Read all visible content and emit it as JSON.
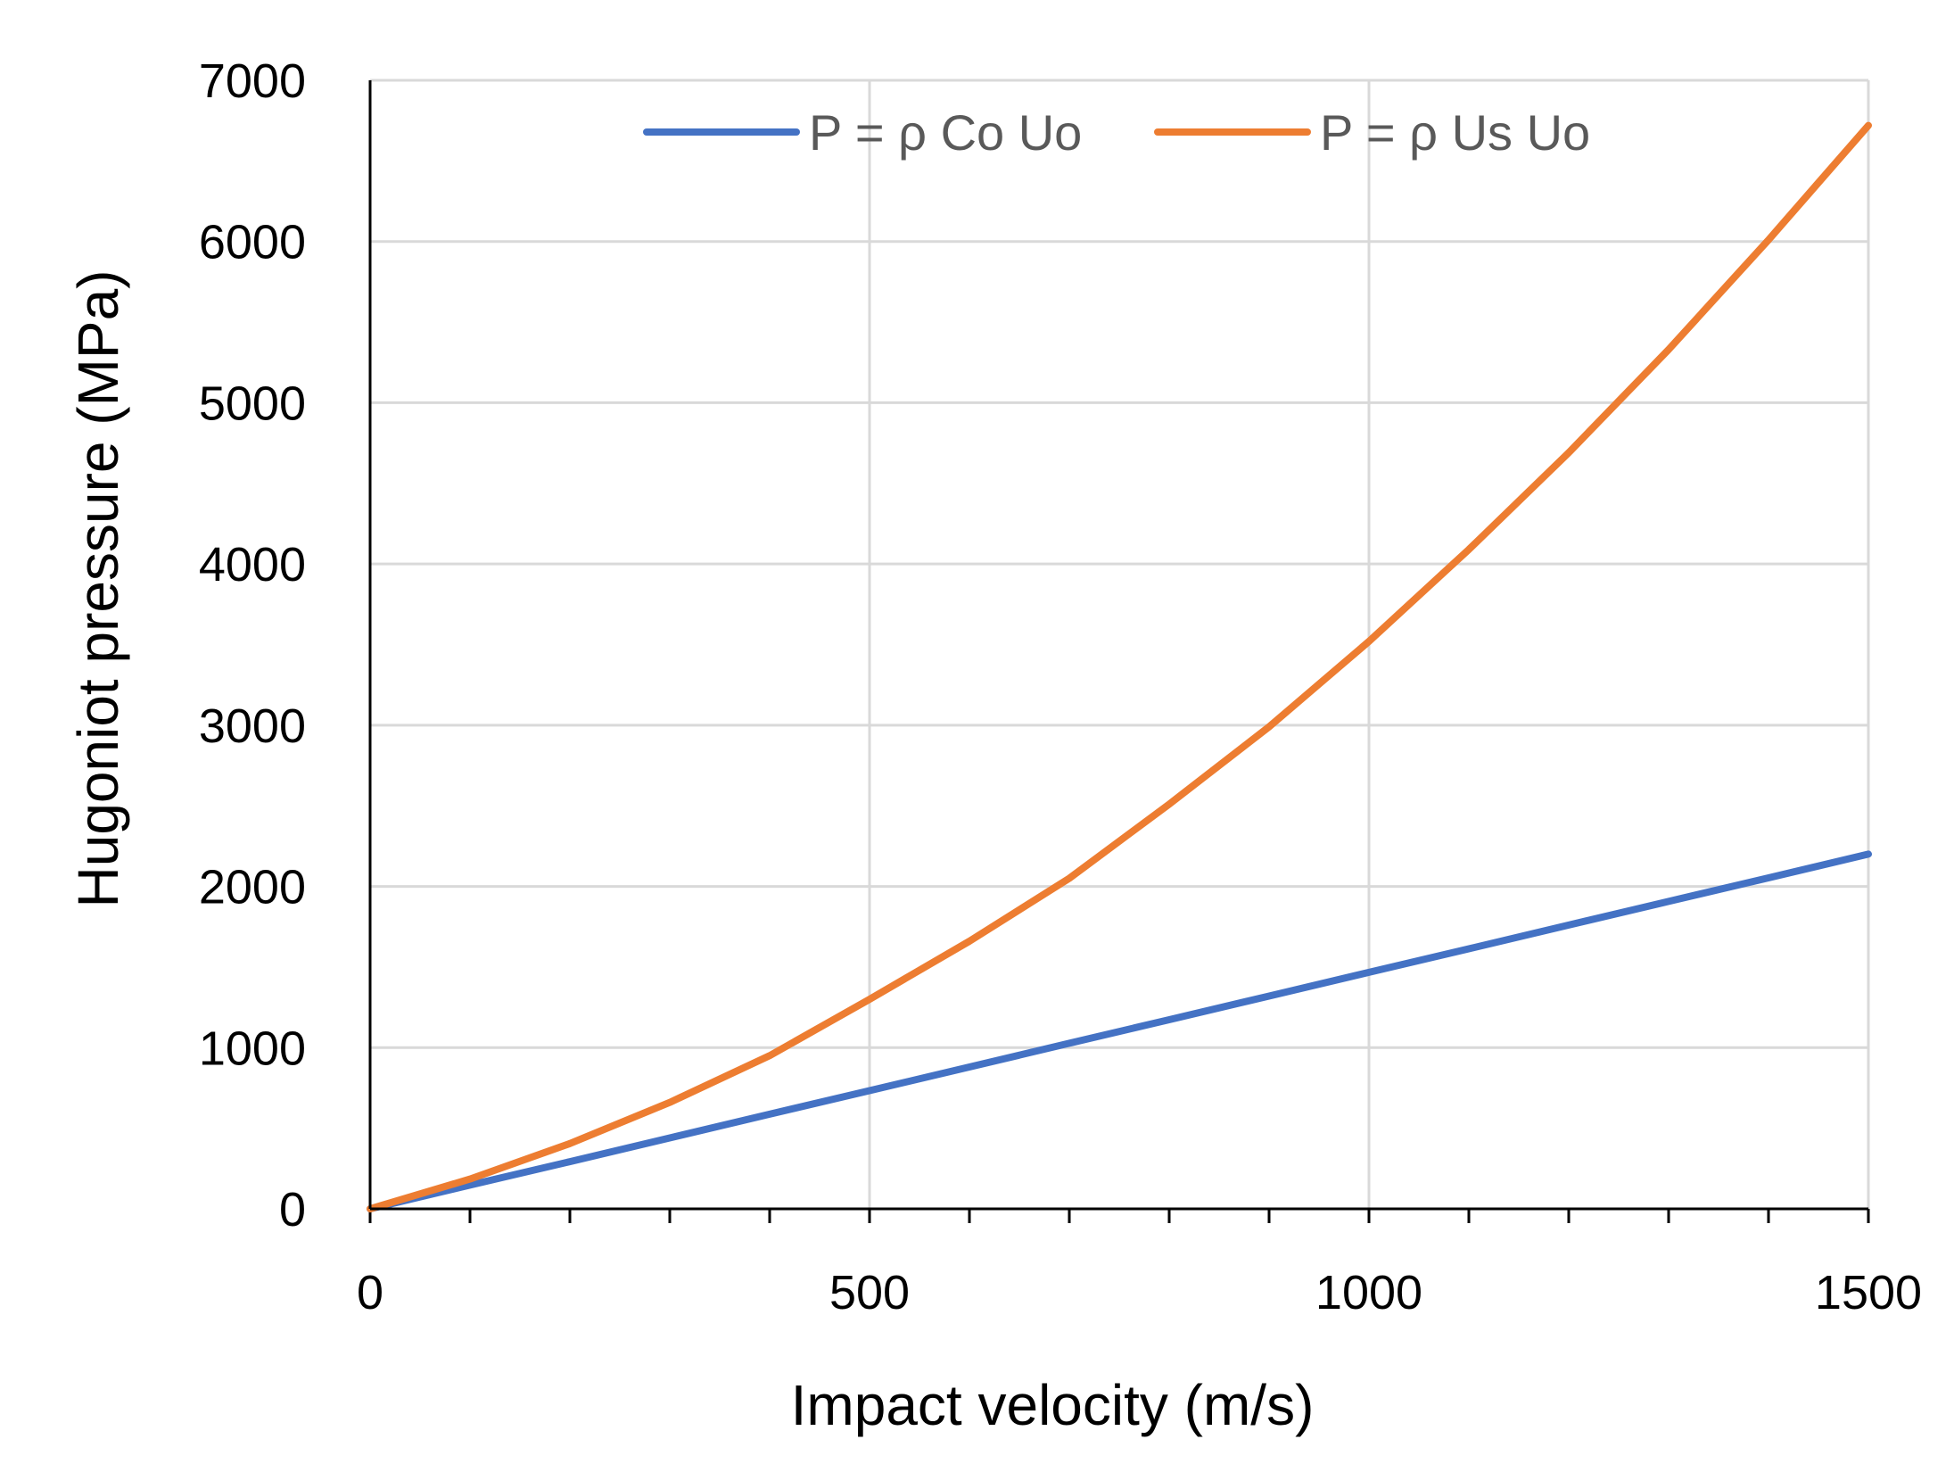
{
  "chart_data": {
    "type": "line",
    "xlabel": "Impact velocity (m/s)",
    "ylabel": "Hugoniot pressure (MPa)",
    "xlim": [
      0,
      1500
    ],
    "ylim": [
      0,
      7000
    ],
    "x_ticks": [
      0,
      500,
      1000,
      1500
    ],
    "y_ticks": [
      0,
      1000,
      2000,
      3000,
      4000,
      5000,
      6000,
      7000
    ],
    "x_minor_step": 100,
    "grid": true,
    "legend_position": "top",
    "series": [
      {
        "name": "P = ρ Co Uo",
        "color": "#4472C4",
        "x": [
          0,
          100,
          200,
          300,
          400,
          500,
          600,
          700,
          800,
          900,
          1000,
          1100,
          1200,
          1300,
          1400,
          1500
        ],
        "y": [
          0,
          147,
          293,
          440,
          587,
          733,
          880,
          1027,
          1173,
          1320,
          1467,
          1613,
          1760,
          1907,
          2053,
          2200
        ]
      },
      {
        "name": "P = ρ Us Uo",
        "color": "#ED7D31",
        "x": [
          0,
          100,
          200,
          300,
          400,
          500,
          600,
          700,
          800,
          900,
          1000,
          1100,
          1200,
          1300,
          1400,
          1500
        ],
        "y": [
          0,
          185,
          405,
          660,
          950,
          1300,
          1660,
          2050,
          2510,
          2990,
          3520,
          4090,
          4690,
          5330,
          6010,
          6720
        ]
      }
    ]
  }
}
